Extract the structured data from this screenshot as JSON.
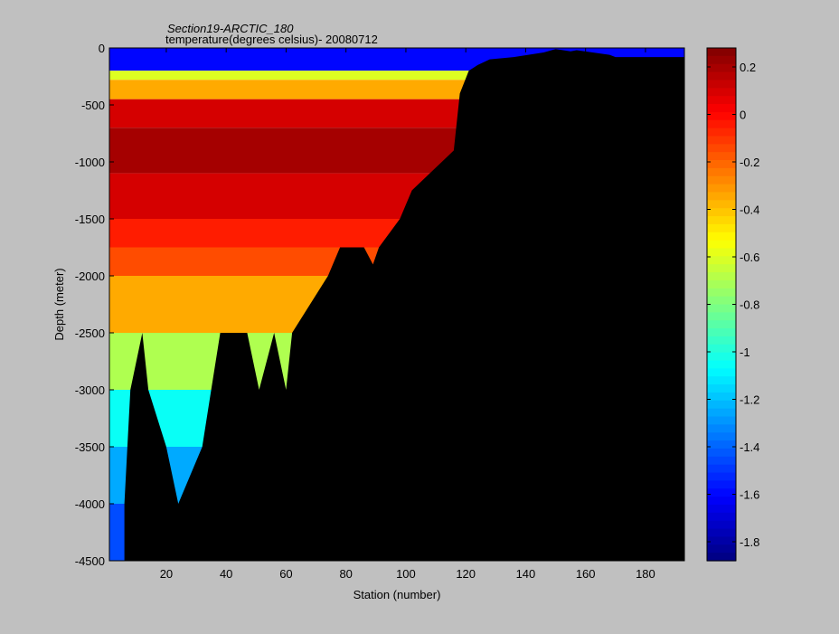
{
  "chart_data": {
    "type": "heatmap",
    "title": "Section19-ARCTIC_180",
    "subtitle": "temperature(degrees  celsius)- 20080712",
    "xlabel": "Station (number)",
    "ylabel": "Depth (meter)",
    "xlim": [
      1,
      193
    ],
    "ylim": [
      -4500,
      0
    ],
    "xticks": [
      20,
      40,
      60,
      80,
      100,
      120,
      140,
      160,
      180
    ],
    "yticks": [
      0,
      -500,
      -1000,
      -1500,
      -2000,
      -2500,
      -3000,
      -3500,
      -4000,
      -4500
    ],
    "colorbar": {
      "range": [
        -1.88,
        0.28
      ],
      "ticks": [
        0.2,
        0,
        -0.2,
        -0.4,
        -0.6,
        -0.8,
        -1,
        -1.2,
        -1.4,
        -1.6,
        -1.8
      ],
      "colormap": "jet"
    },
    "bathymetry_color": "#000000",
    "layers": [
      {
        "top": 0,
        "bottom": -200,
        "value": -1.6
      },
      {
        "top": -200,
        "bottom": -280,
        "value": -0.6
      },
      {
        "top": -280,
        "bottom": -450,
        "value": -0.35
      },
      {
        "top": -450,
        "bottom": -700,
        "value": 0.1
      },
      {
        "top": -700,
        "bottom": -1100,
        "value": 0.2
      },
      {
        "top": -1100,
        "bottom": -1500,
        "value": 0.1
      },
      {
        "top": -1500,
        "bottom": -1750,
        "value": -0.05
      },
      {
        "top": -1750,
        "bottom": -2000,
        "value": -0.15
      },
      {
        "top": -2000,
        "bottom": -2500,
        "value": -0.35
      },
      {
        "top": -2500,
        "bottom": -3000,
        "value": -0.7
      },
      {
        "top": -3000,
        "bottom": -3500,
        "value": -1.05
      },
      {
        "top": -3500,
        "bottom": -4000,
        "value": -1.25
      },
      {
        "top": -4000,
        "bottom": -4500,
        "value": -1.45
      }
    ],
    "bottom_depth": [
      {
        "station": 1,
        "depth": -4500
      },
      {
        "station": 6,
        "depth": -4500
      },
      {
        "station": 6,
        "depth": -4000
      },
      {
        "station": 7,
        "depth": -3500
      },
      {
        "station": 8,
        "depth": -3000
      },
      {
        "station": 12,
        "depth": -2500
      },
      {
        "station": 14,
        "depth": -3000
      },
      {
        "station": 20,
        "depth": -3500
      },
      {
        "station": 24,
        "depth": -4000
      },
      {
        "station": 32,
        "depth": -3500
      },
      {
        "station": 35,
        "depth": -3000
      },
      {
        "station": 38,
        "depth": -2500
      },
      {
        "station": 47,
        "depth": -2500
      },
      {
        "station": 51,
        "depth": -3000
      },
      {
        "station": 56,
        "depth": -2500
      },
      {
        "station": 60,
        "depth": -3000
      },
      {
        "station": 62,
        "depth": -2500
      },
      {
        "station": 74,
        "depth": -2000
      },
      {
        "station": 78,
        "depth": -1750
      },
      {
        "station": 86,
        "depth": -1750
      },
      {
        "station": 89,
        "depth": -1900
      },
      {
        "station": 91,
        "depth": -1750
      },
      {
        "station": 98,
        "depth": -1500
      },
      {
        "station": 102,
        "depth": -1250
      },
      {
        "station": 108,
        "depth": -1100
      },
      {
        "station": 112,
        "depth": -1000
      },
      {
        "station": 116,
        "depth": -900
      },
      {
        "station": 118,
        "depth": -400
      },
      {
        "station": 121,
        "depth": -200
      },
      {
        "station": 124,
        "depth": -150
      },
      {
        "station": 128,
        "depth": -100
      },
      {
        "station": 136,
        "depth": -80
      },
      {
        "station": 146,
        "depth": -40
      },
      {
        "station": 150,
        "depth": -10
      },
      {
        "station": 155,
        "depth": -30
      },
      {
        "station": 157,
        "depth": -20
      },
      {
        "station": 168,
        "depth": -60
      },
      {
        "station": 170,
        "depth": -80
      },
      {
        "station": 193,
        "depth": -80
      }
    ]
  }
}
